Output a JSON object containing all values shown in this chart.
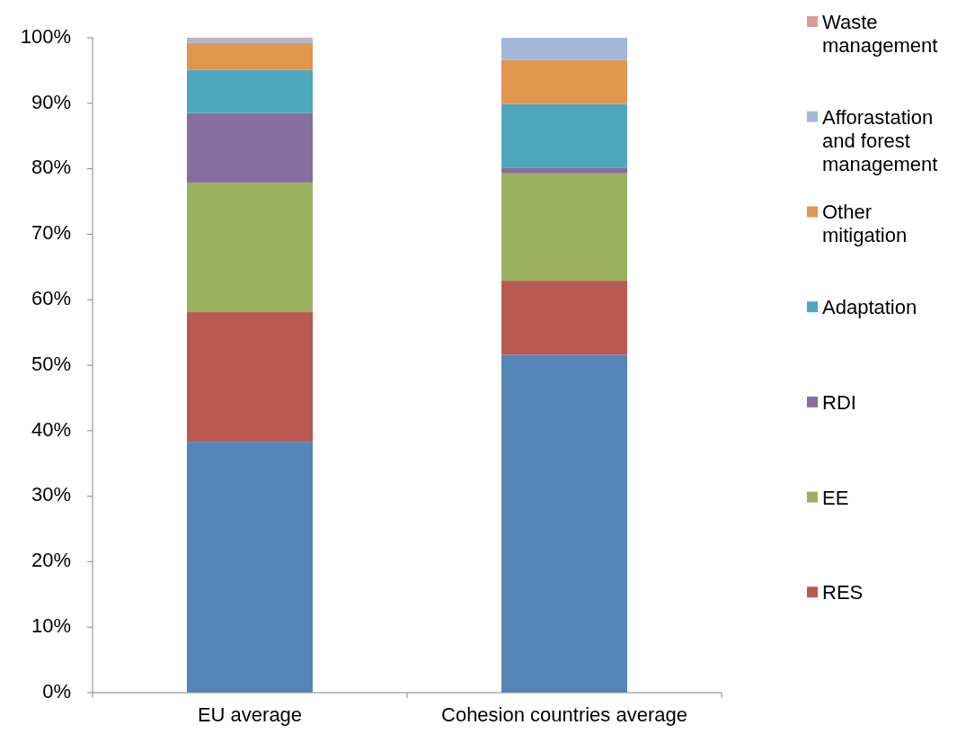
{
  "chart_data": {
    "type": "bar",
    "stacked": true,
    "categories": [
      "EU average",
      "Cohesion countries average"
    ],
    "series": [
      {
        "color": "#5584b6",
        "values": [
          38.3,
          51.6
        ]
      },
      {
        "name": "RES",
        "color": "#b95a52",
        "values": [
          19.8,
          11.3
        ]
      },
      {
        "name": "EE",
        "color": "#9bb05e",
        "values": [
          19.8,
          16.4
        ]
      },
      {
        "name": "RDI",
        "color": "#866e9e",
        "values": [
          10.6,
          0.8
        ]
      },
      {
        "name": "Adaptation",
        "color": "#4fa7bd",
        "values": [
          6.6,
          9.8
        ]
      },
      {
        "name": "Other mitigation",
        "color": "#e2954d",
        "values": [
          4.1,
          6.7
        ]
      },
      {
        "name": "Afforastation and forest management",
        "color": "#a3b7da",
        "values": [
          0.6,
          3.4
        ]
      },
      {
        "name": "Waste management",
        "color": "#d99b98",
        "values": [
          0.2,
          0
        ]
      }
    ],
    "ylim": [
      0,
      100
    ],
    "yticks": [
      {
        "value": 0,
        "label": "0%"
      },
      {
        "value": 10,
        "label": "10%"
      },
      {
        "value": 20,
        "label": "20%"
      },
      {
        "value": 30,
        "label": "30%"
      },
      {
        "value": 40,
        "label": "40%"
      },
      {
        "value": 50,
        "label": "50%"
      },
      {
        "value": 60,
        "label": "60%"
      },
      {
        "value": 70,
        "label": "70%"
      },
      {
        "value": 80,
        "label": "80%"
      },
      {
        "value": 90,
        "label": "90%"
      },
      {
        "value": 100,
        "label": "100%"
      }
    ],
    "legend": "right"
  }
}
